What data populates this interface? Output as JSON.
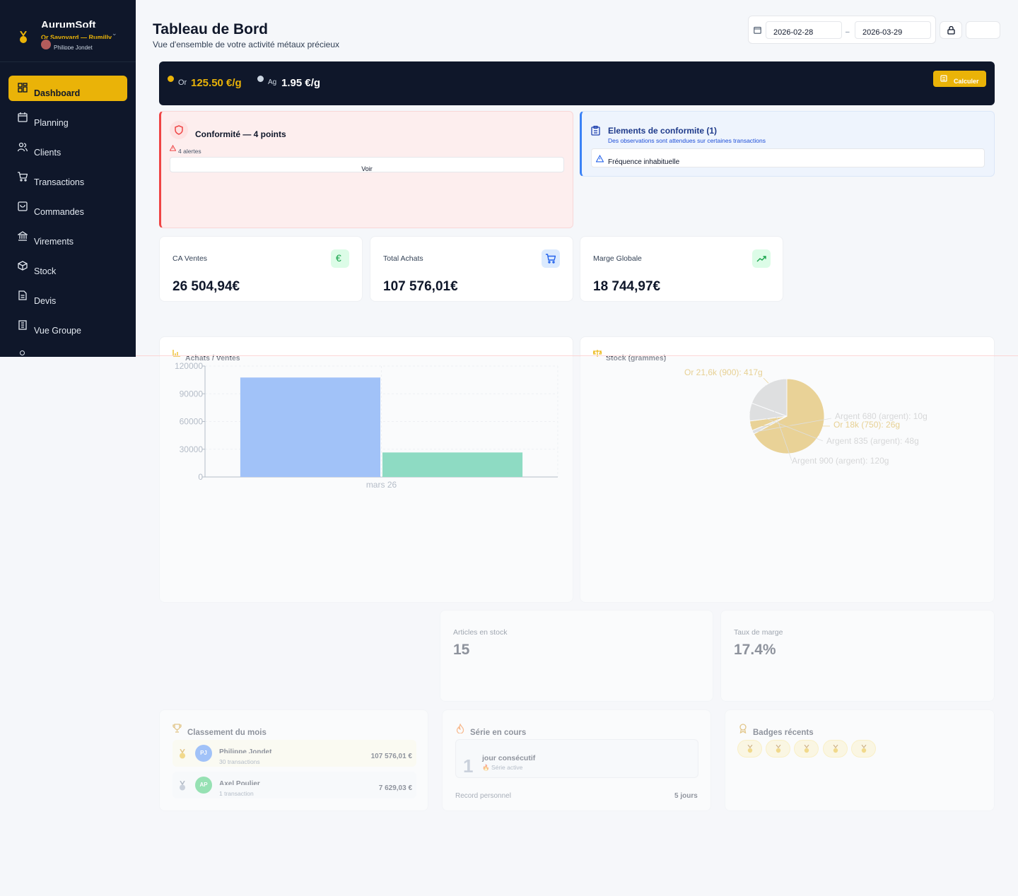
{
  "app": {
    "brand": "AurumSoft",
    "shop": "Or Savoyard — Rumilly",
    "user": "Philippe Jondet"
  },
  "sidebar": {
    "items": [
      {
        "label": "Dashboard",
        "icon": "grid-icon",
        "active": true
      },
      {
        "label": "Planning",
        "icon": "calendar-icon"
      },
      {
        "label": "Clients",
        "icon": "users-icon"
      },
      {
        "label": "Transactions",
        "icon": "cart-icon"
      },
      {
        "label": "Commandes",
        "icon": "bag-icon"
      },
      {
        "label": "Virements",
        "icon": "bank-icon"
      },
      {
        "label": "Stock",
        "icon": "box-icon"
      },
      {
        "label": "Devis",
        "icon": "document-icon"
      },
      {
        "label": "Vue Groupe",
        "icon": "building-icon"
      }
    ]
  },
  "header": {
    "title": "Tableau de Bord",
    "subtitle": "Vue d'ensemble de votre activité métaux précieux",
    "date_from": "2026-02-28",
    "date_sep": "–",
    "date_to": "2026-03-29"
  },
  "prices": {
    "gold_label": "Or",
    "gold_value": "125.50 €/g",
    "silver_label": "Ag",
    "silver_value": "1.95 €/g",
    "calc_label": "Calculer"
  },
  "alert": {
    "title": "Conformité — 4 points",
    "count_text": "4 alertes",
    "button": "Voir"
  },
  "compliance": {
    "title": "Elements de conformite (1)",
    "subtitle": "Des observations sont attendues sur certaines transactions",
    "item": "Fréquence inhabituelle"
  },
  "stats": [
    {
      "label": "CA Ventes",
      "value": "26 504,94€",
      "icon": "euro-icon"
    },
    {
      "label": "Total Achats",
      "value": "107 576,01€",
      "icon": "cart-icon"
    },
    {
      "label": "Marge Globale",
      "value": "18 744,97€",
      "icon": "trending-up-icon"
    }
  ],
  "bar_chart_title": "Achats / Ventes",
  "pie_chart_title": "Stock (grammes)",
  "chart_data": [
    {
      "type": "bar",
      "categories": [
        "mars 26"
      ],
      "series": [
        {
          "values": [
            107576
          ],
          "color": "#3b82f6"
        },
        {
          "values": [
            26505
          ],
          "color": "#10b981"
        }
      ],
      "ylim": [
        0,
        120000
      ],
      "yticks": [
        0,
        30000,
        60000,
        90000,
        120000
      ],
      "grid": true
    },
    {
      "type": "pie",
      "slices": [
        {
          "label": "Or 21,6k (900): 417g",
          "value": 417,
          "color": "#daa520"
        },
        {
          "label": "Argent 680 (argent): 10g",
          "value": 10,
          "color": "#c0c0c0"
        },
        {
          "label": "Or 18k (750): 26g",
          "value": 26,
          "color": "#daa520"
        },
        {
          "label": "Argent 835 (argent): 48g",
          "value": 48,
          "color": "#c0c0c0"
        },
        {
          "label": "Argent 900 (argent): 120g",
          "value": 120,
          "color": "#c0c0c0"
        }
      ]
    }
  ],
  "mini_stats": [
    {
      "label": "Articles en stock",
      "value": "15"
    },
    {
      "label": "Taux de marge",
      "value": "17.4%"
    }
  ],
  "ranking": {
    "title": "Classement du mois",
    "rows": [
      {
        "initials": "PJ",
        "name": "Philippe Jondet",
        "sub": "30 transactions",
        "amount": "107 576,01 €",
        "avatar_color": "#3b82f6",
        "medal": "gold-medal-icon"
      },
      {
        "initials": "AP",
        "name": "Axel Poulier",
        "sub": "1 transaction",
        "amount": "7 629,03 €",
        "avatar_color": "#22c55e",
        "medal": "silver-medal-icon"
      }
    ]
  },
  "streak": {
    "title": "Série en cours",
    "number": "1",
    "label": "jour consécutif",
    "status": "🔥 Série active",
    "record_label": "Record personnel",
    "record_value": "5 jours"
  },
  "badges": {
    "title": "Badges récents",
    "count": 5
  }
}
